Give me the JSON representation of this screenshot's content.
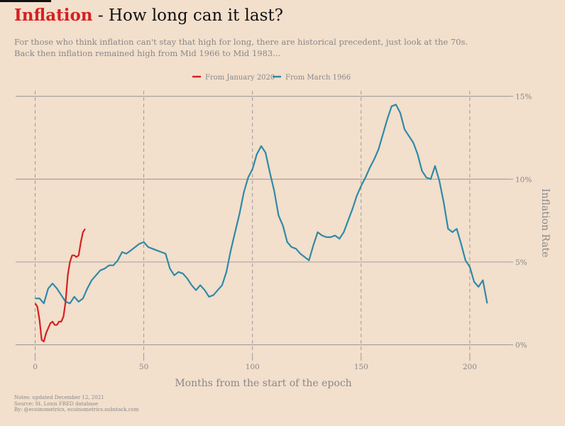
{
  "header": {
    "title_accent": "Inflation",
    "title_rest": " - How long can it last?",
    "subtitle_line1": "For those who think inflation can't stay that high for long, there are historical precedent, just look at the 70s.",
    "subtitle_line2": "Back then inflation remained high from Mid 1966 to Mid 1983..."
  },
  "notes": {
    "line1": "Notes: updated December 12, 2021",
    "line2": "Source: St. Louis FRED database",
    "line3": "By: @ecoinometrics, ecoinometrics.substack.com"
  },
  "colors": {
    "background": "#f2dfcc",
    "red": "#d62020",
    "blue": "#2e8aa8"
  },
  "chart_data": {
    "type": "line",
    "title": "Inflation - How long can it last?",
    "xlabel": "Months from the start of the epoch",
    "ylabel": "Inflation Rate",
    "xlim": [
      -9,
      218
    ],
    "ylim": [
      -0.7,
      15.5
    ],
    "x_ticks": [
      0,
      50,
      100,
      150,
      200
    ],
    "x_tick_labels": [
      "0",
      "50",
      "100",
      "150",
      "200"
    ],
    "y_ticks": [
      0,
      5,
      10,
      15
    ],
    "y_tick_labels": [
      "0%",
      "5%",
      "10%",
      "15%"
    ],
    "grid": "horizontal solid lines at y ticks, vertical dashed lines at x ticks",
    "y_axis_side": "right",
    "legend_position": "top-center",
    "series": [
      {
        "name": "From January 2020",
        "color": "#d62020",
        "x": [
          0,
          1,
          2,
          3,
          4,
          5,
          6,
          7,
          8,
          9,
          10,
          11,
          12,
          13,
          14,
          15,
          16,
          17,
          18,
          19,
          20,
          21,
          22,
          23
        ],
        "y": [
          2.5,
          2.3,
          1.5,
          0.3,
          0.2,
          0.7,
          1.0,
          1.3,
          1.4,
          1.2,
          1.2,
          1.4,
          1.4,
          1.7,
          2.6,
          4.2,
          5.0,
          5.4,
          5.4,
          5.3,
          5.4,
          6.2,
          6.8,
          7.0
        ]
      },
      {
        "name": "From March 1966",
        "color": "#2e8aa8",
        "x": [
          0,
          2,
          4,
          6,
          8,
          10,
          12,
          14,
          16,
          18,
          20,
          22,
          24,
          26,
          28,
          30,
          32,
          34,
          36,
          38,
          40,
          42,
          44,
          46,
          48,
          50,
          52,
          54,
          56,
          58,
          60,
          62,
          64,
          66,
          68,
          70,
          72,
          74,
          76,
          78,
          80,
          82,
          84,
          86,
          88,
          90,
          92,
          94,
          96,
          98,
          100,
          102,
          104,
          106,
          108,
          110,
          112,
          114,
          116,
          118,
          120,
          122,
          124,
          126,
          128,
          130,
          132,
          134,
          136,
          138,
          140,
          142,
          144,
          146,
          148,
          150,
          152,
          154,
          156,
          158,
          160,
          162,
          164,
          166,
          168,
          170,
          172,
          174,
          176,
          178,
          180,
          182,
          184,
          186,
          188,
          190,
          192,
          194,
          196,
          198,
          200,
          202,
          204,
          206,
          208
        ],
        "y": [
          2.8,
          2.8,
          2.5,
          3.4,
          3.7,
          3.4,
          3.0,
          2.6,
          2.5,
          2.9,
          2.6,
          2.8,
          3.4,
          3.9,
          4.2,
          4.5,
          4.6,
          4.8,
          4.8,
          5.1,
          5.6,
          5.5,
          5.7,
          5.9,
          6.1,
          6.2,
          5.9,
          5.8,
          5.7,
          5.6,
          5.5,
          4.6,
          4.2,
          4.4,
          4.3,
          4.0,
          3.6,
          3.3,
          3.6,
          3.3,
          2.9,
          3.0,
          3.3,
          3.6,
          4.4,
          5.7,
          6.8,
          7.9,
          9.2,
          10.1,
          10.6,
          11.5,
          12.0,
          11.6,
          10.4,
          9.3,
          7.8,
          7.2,
          6.2,
          5.9,
          5.8,
          5.5,
          5.3,
          5.1,
          6.0,
          6.8,
          6.6,
          6.5,
          6.5,
          6.6,
          6.4,
          6.8,
          7.5,
          8.2,
          9.0,
          9.6,
          10.1,
          10.7,
          11.2,
          11.8,
          12.7,
          13.6,
          14.4,
          14.5,
          14.0,
          13.0,
          12.6,
          12.2,
          11.5,
          10.5,
          10.1,
          10.0,
          10.8,
          9.9,
          8.6,
          7.0,
          6.8,
          7.0,
          6.1,
          5.1,
          4.7,
          3.8,
          3.5,
          3.9,
          2.5
        ]
      }
    ]
  }
}
